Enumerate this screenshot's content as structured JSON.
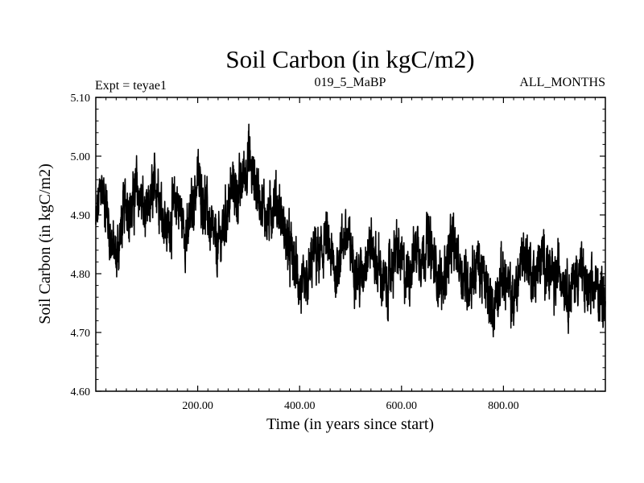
{
  "chart_data": {
    "type": "line",
    "title": "Soil Carbon (in kgC/m2)",
    "subtitle_left": "Expt = teyae1",
    "subtitle_center": "019_5_MaBP",
    "subtitle_right": "ALL_MONTHS",
    "xlabel": "Time (in years since start)",
    "ylabel": "Soil Carbon (in kgC/m2)",
    "xlim": [
      0,
      1000
    ],
    "ylim": [
      4.6,
      5.1
    ],
    "x_ticks": [
      {
        "value": 200,
        "label": "200.00"
      },
      {
        "value": 400,
        "label": "400.00"
      },
      {
        "value": 600,
        "label": "600.00"
      },
      {
        "value": 800,
        "label": "800.00"
      }
    ],
    "y_ticks": [
      {
        "value": 4.6,
        "label": "4.60"
      },
      {
        "value": 4.7,
        "label": "4.70"
      },
      {
        "value": 4.8,
        "label": "4.80"
      },
      {
        "value": 4.9,
        "label": "4.90"
      },
      {
        "value": 5.0,
        "label": "5.00"
      },
      {
        "value": 5.1,
        "label": "5.10"
      }
    ],
    "series": [
      {
        "name": "Soil Carbon",
        "color": "#000000",
        "x": [
          0,
          10,
          20,
          30,
          40,
          50,
          60,
          70,
          80,
          90,
          100,
          110,
          120,
          130,
          140,
          150,
          160,
          170,
          180,
          190,
          200,
          210,
          220,
          230,
          240,
          250,
          260,
          270,
          280,
          290,
          300,
          310,
          320,
          330,
          340,
          350,
          360,
          370,
          380,
          390,
          400,
          410,
          420,
          430,
          440,
          450,
          460,
          470,
          480,
          490,
          500,
          510,
          520,
          530,
          540,
          550,
          560,
          570,
          580,
          590,
          600,
          610,
          620,
          630,
          640,
          650,
          660,
          670,
          680,
          690,
          700,
          710,
          720,
          730,
          740,
          750,
          760,
          770,
          780,
          790,
          800,
          810,
          820,
          830,
          840,
          850,
          860,
          870,
          880,
          890,
          900,
          910,
          920,
          930,
          940,
          950,
          960,
          970,
          980,
          990,
          1000
        ],
        "values": [
          4.88,
          4.95,
          4.92,
          4.86,
          4.82,
          4.88,
          4.93,
          4.9,
          4.95,
          4.92,
          4.89,
          4.93,
          4.96,
          4.91,
          4.87,
          4.9,
          4.93,
          4.89,
          4.86,
          4.92,
          4.96,
          4.93,
          4.9,
          4.86,
          4.84,
          4.88,
          4.92,
          4.95,
          4.93,
          4.97,
          5.0,
          4.96,
          4.94,
          4.91,
          4.89,
          4.93,
          4.91,
          4.87,
          4.84,
          4.82,
          4.78,
          4.76,
          4.8,
          4.84,
          4.82,
          4.86,
          4.83,
          4.8,
          4.84,
          4.87,
          4.84,
          4.81,
          4.79,
          4.83,
          4.85,
          4.82,
          4.8,
          4.77,
          4.81,
          4.84,
          4.82,
          4.79,
          4.82,
          4.85,
          4.83,
          4.86,
          4.83,
          4.8,
          4.78,
          4.82,
          4.85,
          4.83,
          4.8,
          4.78,
          4.8,
          4.82,
          4.79,
          4.76,
          4.74,
          4.78,
          4.8,
          4.77,
          4.75,
          4.8,
          4.84,
          4.82,
          4.79,
          4.81,
          4.83,
          4.8,
          4.78,
          4.81,
          4.79,
          4.77,
          4.79,
          4.81,
          4.78,
          4.76,
          4.78,
          4.77,
          4.76
        ],
        "noise_amplitude": 0.06
      }
    ]
  }
}
